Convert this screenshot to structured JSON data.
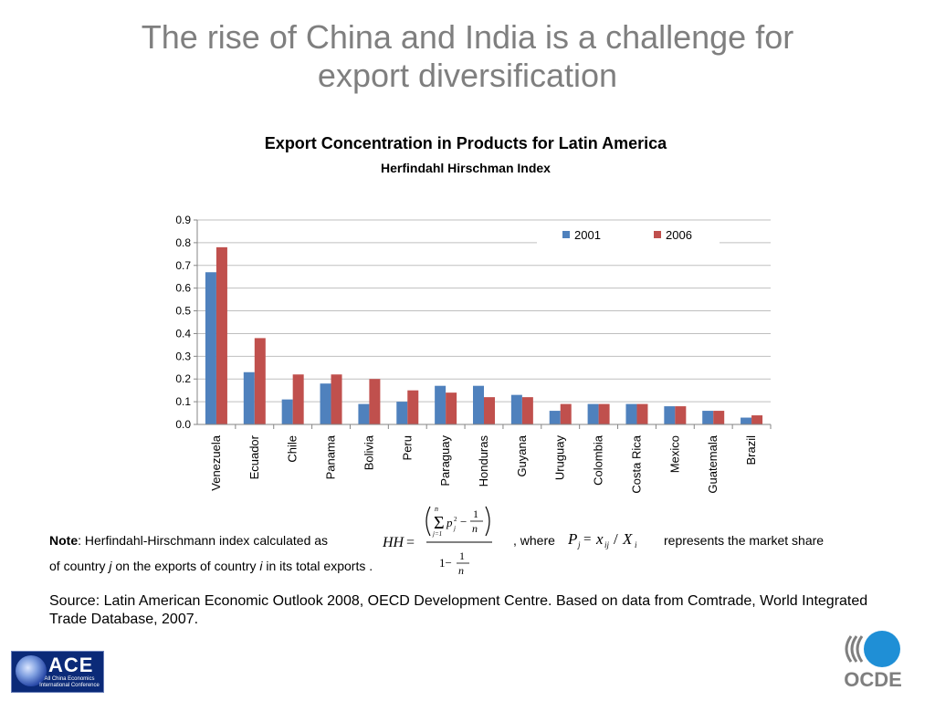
{
  "slide": {
    "title_line1": "The rise of China and India is a challenge for",
    "title_line2": "export diversification"
  },
  "chart_data": {
    "type": "bar",
    "title": "Export Concentration in Products for Latin America",
    "subtitle": "Herfindahl Hirschman Index",
    "categories": [
      "Venezuela",
      "Ecuador",
      "Chile",
      "Panama",
      "Bolivia",
      "Peru",
      "Paraguay",
      "Honduras",
      "Guyana",
      "Uruguay",
      "Colombia",
      "Costa Rica",
      "Mexico",
      "Guatemala",
      "Brazil"
    ],
    "series": [
      {
        "name": "2001",
        "color": "#4f81bd",
        "values": [
          0.67,
          0.23,
          0.11,
          0.18,
          0.09,
          0.1,
          0.17,
          0.17,
          0.13,
          0.06,
          0.09,
          0.09,
          0.08,
          0.06,
          0.03
        ]
      },
      {
        "name": "2006",
        "color": "#c0504d",
        "values": [
          0.78,
          0.38,
          0.22,
          0.22,
          0.2,
          0.15,
          0.14,
          0.12,
          0.12,
          0.09,
          0.09,
          0.09,
          0.08,
          0.06,
          0.04
        ]
      }
    ],
    "ylim": [
      0,
      0.9
    ],
    "yticks": [
      "0.0",
      "0.1",
      "0.2",
      "0.3",
      "0.4",
      "0.5",
      "0.6",
      "0.7",
      "0.8",
      "0.9"
    ],
    "grid": true,
    "legend_position": "top-right"
  },
  "note": {
    "label": "Note",
    "text1": ": Herfindahl-Hirschmann  index calculated as",
    "where": ", where",
    "represents": "represents the market share",
    "line2_a": "of country ",
    "line2_j": "j",
    "line2_b": " on the exports of country ",
    "line2_i": "i",
    "line2_c": " in its total exports ."
  },
  "source": {
    "text": "Source: Latin American Economic Outlook 2008, OECD Development Centre. Based on data from Comtrade, World Integrated Trade Database, 2007."
  },
  "logos": {
    "ace_name": "ACE",
    "ace_subtitle": "All China Economics International Conference",
    "ocde_name": "OCDE"
  }
}
